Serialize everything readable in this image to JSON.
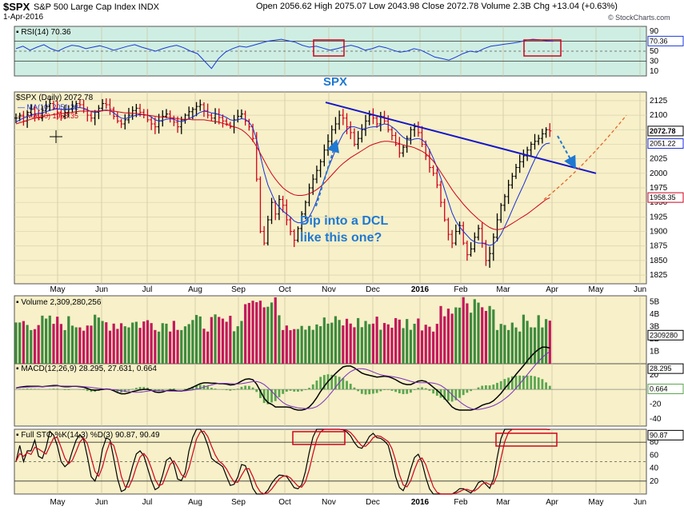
{
  "header": {
    "symbol": "$SPX",
    "name": "S&P 500 Large Cap Index",
    "exchange": "INDX",
    "date": "1-Apr-2016",
    "ohlc": "Open 2056.62  High 2075.07  Low 2043.98  Close 2072.78  Volume 2.3B  Chg +13.04 (+0.63%)",
    "watermark": "© StockCharts.com"
  },
  "colors": {
    "panel_bg": "#f7f0c8",
    "rsi_bg": "#cfeee3",
    "bar_up": "#000000",
    "bar_down": "#d0021b",
    "ma10": "#1a2fd6",
    "ma50": "#d0021b",
    "trend": "#1616c8",
    "annot": "#1f78d2",
    "vol_up": "#3d8a3d",
    "vol_down": "#c2185b",
    "box": "#d0021b"
  },
  "chart_data": [
    {
      "panel": "rsi",
      "type": "line",
      "legend": "RSI(14) 70.36",
      "ylim": [
        0,
        100
      ],
      "ticks": [
        90,
        70,
        50,
        30,
        10
      ],
      "last_label": "70.36",
      "levels": [
        70,
        50,
        30
      ],
      "month_ticks": [
        "May",
        "Jun",
        "Jul",
        "Aug",
        "Sep",
        "Oct",
        "Nov",
        "Dec",
        "2016",
        "Feb",
        "Mar",
        "Apr",
        "May",
        "Jun"
      ],
      "values": [
        55,
        60,
        52,
        58,
        63,
        55,
        50,
        57,
        62,
        60,
        55,
        58,
        61,
        57,
        52,
        56,
        60,
        63,
        58,
        54,
        50,
        55,
        59,
        62,
        57,
        50,
        45,
        30,
        15,
        35,
        48,
        55,
        60,
        58,
        62,
        66,
        70,
        72,
        74,
        71,
        68,
        62,
        58,
        60,
        56,
        52,
        55,
        59,
        62,
        58,
        52,
        55,
        60,
        57,
        52,
        48,
        50,
        55,
        52,
        45,
        38,
        35,
        32,
        38,
        45,
        50,
        48,
        55,
        60,
        62,
        64,
        66,
        68,
        72,
        74,
        73,
        71,
        70
      ]
    },
    {
      "panel": "price",
      "type": "ohlc",
      "title": "SPX",
      "legend": [
        "$SPX (Daily) 2072.78",
        "MA(10) 2051.22",
        "MA(50) 1958.35"
      ],
      "ylim": [
        1810,
        2140
      ],
      "ticks": [
        2125,
        2100,
        2075,
        2050,
        2025,
        2000,
        1975,
        1950,
        1925,
        1900,
        1875,
        1850,
        1825
      ],
      "last_labels": [
        "2072.78",
        "2051.22",
        "1958.35"
      ],
      "annotation": "Dip into a DCL\nlike this one?",
      "close": [
        2095,
        2100,
        2090,
        2105,
        2110,
        2100,
        2095,
        2108,
        2115,
        2120,
        2112,
        2105,
        2098,
        2105,
        2110,
        2115,
        2120,
        2118,
        2110,
        2100,
        2095,
        2105,
        2112,
        2120,
        2118,
        2110,
        2098,
        2090,
        2085,
        2092,
        2100,
        2108,
        2112,
        2105,
        2100,
        2092,
        2085,
        2080,
        2090,
        2098,
        2102,
        2094,
        2088,
        2080,
        2092,
        2100,
        2106,
        2110,
        2115,
        2118,
        2108,
        2100,
        2095,
        2102,
        2096,
        2090,
        2085,
        2080,
        2092,
        2098,
        2102,
        2090,
        2080,
        2060,
        1990,
        1900,
        1880,
        1920,
        1950,
        1930,
        1955,
        1945,
        1920,
        1900,
        1885,
        1905,
        1930,
        1950,
        1975,
        1990,
        2005,
        2020,
        2040,
        2055,
        2075,
        2085,
        2100,
        2095,
        2080,
        2070,
        2050,
        2060,
        2075,
        2090,
        2100,
        2095,
        2085,
        2098,
        2090,
        2075,
        2065,
        2050,
        2035,
        2045,
        2060,
        2075,
        2080,
        2070,
        2050,
        2030,
        2010,
        2000,
        1980,
        1950,
        1920,
        1895,
        1880,
        1900,
        1910,
        1880,
        1860,
        1870,
        1890,
        1905,
        1880,
        1850,
        1862,
        1890,
        1920,
        1945,
        1960,
        1980,
        1995,
        2010,
        2020,
        2030,
        2040,
        2050,
        2055,
        2060,
        2068,
        2075,
        2073
      ],
      "ma10": [
        2088,
        2092,
        2095,
        2098,
        2100,
        2102,
        2103,
        2104,
        2106,
        2108,
        2110,
        2111,
        2110,
        2109,
        2110,
        2112,
        2113,
        2113,
        2112,
        2109,
        2106,
        2105,
        2106,
        2108,
        2109,
        2108,
        2104,
        2099,
        2095,
        2094,
        2096,
        2098,
        2100,
        2101,
        2101,
        2100,
        2097,
        2092,
        2090,
        2091,
        2093,
        2094,
        2093,
        2090,
        2089,
        2091,
        2094,
        2097,
        2101,
        2105,
        2107,
        2106,
        2104,
        2103,
        2101,
        2099,
        2096,
        2092,
        2091,
        2092,
        2094,
        2093,
        2088,
        2078,
        2058,
        2030,
        2002,
        1980,
        1965,
        1950,
        1942,
        1935,
        1930,
        1925,
        1918,
        1915,
        1915,
        1918,
        1925,
        1937,
        1953,
        1972,
        1990,
        2008,
        2024,
        2040,
        2055,
        2068,
        2075,
        2080,
        2080,
        2078,
        2076,
        2077,
        2079,
        2080,
        2080,
        2083,
        2085,
        2084,
        2080,
        2075,
        2068,
        2062,
        2058,
        2057,
        2059,
        2060,
        2058,
        2052,
        2040,
        2026,
        2010,
        1992,
        1972,
        1952,
        1932,
        1918,
        1908,
        1900,
        1893,
        1886,
        1882,
        1880,
        1880,
        1878,
        1876,
        1878,
        1885,
        1895,
        1908,
        1922,
        1937,
        1952,
        1966,
        1980,
        1995,
        2010,
        2024,
        2036,
        2046,
        2051,
        2052
      ],
      "ma50": [
        2085,
        2087,
        2089,
        2091,
        2093,
        2095,
        2096,
        2098,
        2099,
        2100,
        2101,
        2102,
        2103,
        2103,
        2104,
        2105,
        2106,
        2107,
        2107,
        2107,
        2107,
        2107,
        2107,
        2108,
        2108,
        2108,
        2107,
        2106,
        2105,
        2104,
        2104,
        2103,
        2103,
        2102,
        2101,
        2100,
        2099,
        2098,
        2097,
        2097,
        2096,
        2096,
        2095,
        2094,
        2093,
        2093,
        2093,
        2092,
        2092,
        2092,
        2092,
        2091,
        2090,
        2089,
        2088,
        2086,
        2084,
        2082,
        2080,
        2078,
        2075,
        2070,
        2064,
        2056,
        2046,
        2034,
        2022,
        2010,
        1999,
        1990,
        1982,
        1975,
        1970,
        1966,
        1963,
        1962,
        1962,
        1963,
        1965,
        1968,
        1972,
        1977,
        1983,
        1990,
        1997,
        2004,
        2011,
        2017,
        2022,
        2027,
        2031,
        2035,
        2039,
        2043,
        2047,
        2050,
        2052,
        2054,
        2055,
        2055,
        2054,
        2053,
        2051,
        2049,
        2047,
        2046,
        2044,
        2041,
        2038,
        2034,
        2028,
        2021,
        2012,
        2002,
        1992,
        1982,
        1972,
        1963,
        1955,
        1947,
        1940,
        1933,
        1927,
        1921,
        1916,
        1911,
        1907,
        1904,
        1903,
        1904,
        1906,
        1910,
        1914,
        1918,
        1922,
        1926,
        1930,
        1935,
        1940,
        1945,
        1950,
        1955,
        1958
      ],
      "trendline": [
        [
          113,
          2122
        ],
        [
          145,
          2020
        ]
      ],
      "projection_ma50": [
        [
          140,
          1960
        ],
        [
          160,
          2098
        ]
      ]
    },
    {
      "panel": "volume",
      "type": "bar",
      "legend": "Volume 2,309,280,256",
      "ticks": [
        "5B",
        "4B",
        "3B",
        "2B",
        "1B"
      ],
      "last_label": "2309280",
      "ylim": [
        0,
        5.5
      ]
    },
    {
      "panel": "macd",
      "type": "line",
      "legend": "MACD(12,26,9) 28.295, 27.631, 0.664",
      "ticks": [
        20,
        0,
        -20,
        -40
      ],
      "last_labels": [
        "28.295",
        "0.664"
      ],
      "ylim": [
        -50,
        35
      ]
    },
    {
      "panel": "sto",
      "type": "line",
      "legend": "Full STO %K(14,3) %D(3) 90.87, 90.49",
      "ticks": [
        80,
        60,
        40,
        20
      ],
      "last_label": "90.87",
      "ylim": [
        0,
        100
      ]
    }
  ]
}
